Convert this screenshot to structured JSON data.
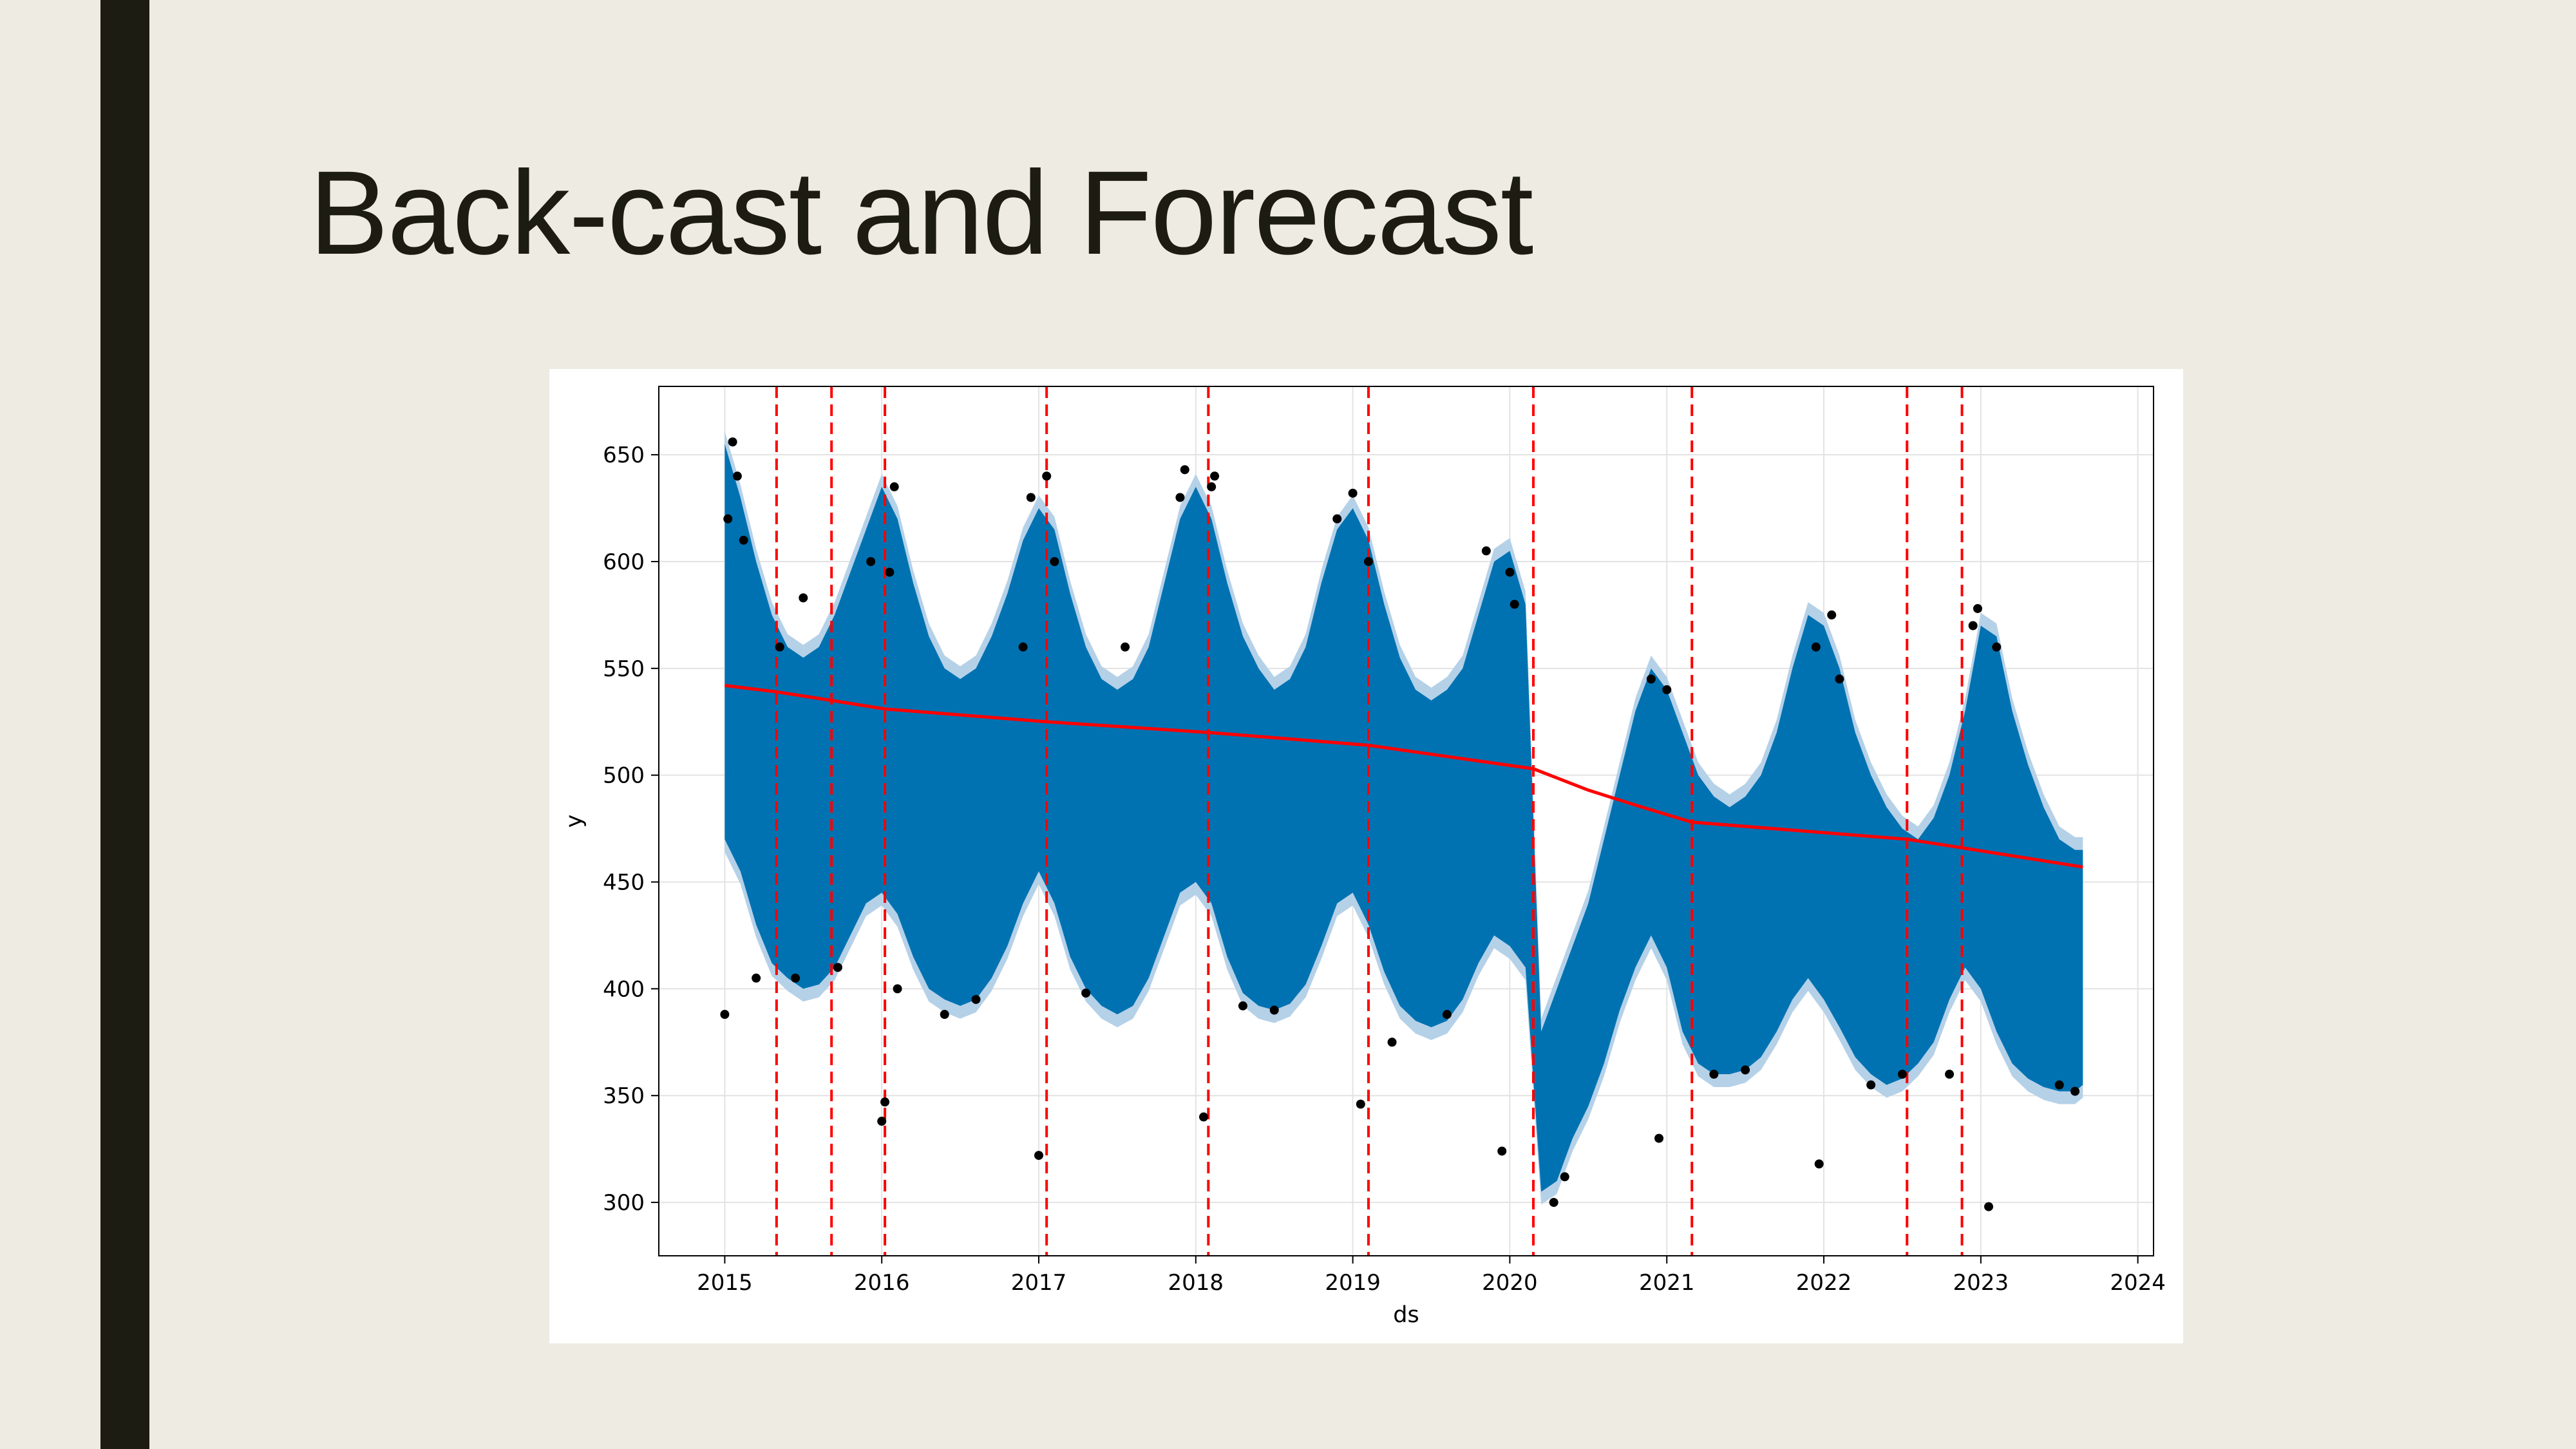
{
  "slide": {
    "title": "Back-cast and Forecast"
  },
  "chart_data": {
    "type": "line",
    "title": "",
    "xlabel": "ds",
    "ylabel": "y",
    "xlim": [
      2014.58,
      2024.1
    ],
    "ylim": [
      275,
      682
    ],
    "x_ticks": [
      2015,
      2016,
      2017,
      2018,
      2019,
      2020,
      2021,
      2022,
      2023,
      2024
    ],
    "x_tick_labels": [
      "2015",
      "2016",
      "2017",
      "2018",
      "2019",
      "2020",
      "2021",
      "2022",
      "2023",
      "2024"
    ],
    "y_ticks": [
      300,
      350,
      400,
      450,
      500,
      550,
      600,
      650
    ],
    "y_tick_labels": [
      "300",
      "350",
      "400",
      "450",
      "500",
      "550",
      "600",
      "650"
    ],
    "grid": true,
    "legend": "none",
    "colors": {
      "forecast": "#0072b2",
      "uncertainty": "#b5d1e8",
      "trend": "#ff0000",
      "changepoints": "#ff0000",
      "observed": "#000000",
      "frame": "#000000",
      "grid": "#e3e3e3"
    },
    "series": [
      {
        "role": "forecast_band",
        "x": [
          2015.0,
          2015.1,
          2015.2,
          2015.3,
          2015.4,
          2015.5,
          2015.6,
          2015.7,
          2015.8,
          2015.9,
          2016.0,
          2016.1,
          2016.2,
          2016.3,
          2016.4,
          2016.5,
          2016.6,
          2016.7,
          2016.8,
          2016.9,
          2017.0,
          2017.1,
          2017.2,
          2017.3,
          2017.4,
          2017.5,
          2017.6,
          2017.7,
          2017.8,
          2017.9,
          2018.0,
          2018.1,
          2018.2,
          2018.3,
          2018.4,
          2018.5,
          2018.6,
          2018.7,
          2018.8,
          2018.9,
          2019.0,
          2019.1,
          2019.2,
          2019.3,
          2019.4,
          2019.5,
          2019.6,
          2019.7,
          2019.8,
          2019.9,
          2020.0,
          2020.1,
          2020.2,
          2020.3,
          2020.4,
          2020.5,
          2020.6,
          2020.7,
          2020.8,
          2020.9,
          2021.0,
          2021.1,
          2021.2,
          2021.3,
          2021.4,
          2021.5,
          2021.6,
          2021.7,
          2021.8,
          2021.9,
          2022.0,
          2022.1,
          2022.2,
          2022.3,
          2022.4,
          2022.5,
          2022.6,
          2022.7,
          2022.8,
          2022.9,
          2023.0,
          2023.1,
          2023.2,
          2023.3,
          2023.4,
          2023.5,
          2023.6,
          2023.65
        ],
        "upper": [
          655,
          630,
          600,
          575,
          560,
          555,
          560,
          575,
          595,
          615,
          635,
          620,
          590,
          565,
          550,
          545,
          550,
          565,
          585,
          610,
          625,
          615,
          585,
          560,
          545,
          540,
          545,
          560,
          590,
          620,
          635,
          620,
          590,
          565,
          550,
          540,
          545,
          560,
          590,
          615,
          625,
          610,
          580,
          555,
          540,
          535,
          540,
          550,
          575,
          600,
          605,
          580,
          380,
          400,
          420,
          440,
          470,
          500,
          530,
          550,
          540,
          520,
          500,
          490,
          485,
          490,
          500,
          520,
          550,
          575,
          570,
          550,
          520,
          500,
          485,
          475,
          470,
          480,
          500,
          530,
          570,
          565,
          530,
          505,
          485,
          470,
          465,
          465
        ],
        "lower": [
          470,
          455,
          430,
          412,
          405,
          400,
          402,
          410,
          425,
          440,
          445,
          435,
          415,
          400,
          395,
          392,
          395,
          405,
          420,
          440,
          455,
          440,
          415,
          400,
          392,
          388,
          392,
          405,
          425,
          445,
          450,
          440,
          415,
          398,
          392,
          390,
          393,
          402,
          420,
          440,
          445,
          430,
          408,
          392,
          385,
          382,
          385,
          395,
          412,
          425,
          420,
          410,
          305,
          310,
          330,
          345,
          365,
          390,
          410,
          425,
          410,
          380,
          365,
          360,
          360,
          362,
          368,
          380,
          395,
          405,
          395,
          382,
          368,
          360,
          355,
          358,
          365,
          375,
          395,
          410,
          400,
          380,
          365,
          358,
          354,
          352,
          352,
          355
        ]
      },
      {
        "role": "trend",
        "x": [
          2015.0,
          2015.33,
          2015.68,
          2016.02,
          2017.05,
          2018.08,
          2019.1,
          2020.15,
          2020.5,
          2020.8,
          2021.16,
          2022.53,
          2022.88,
          2023.65
        ],
        "y": [
          542,
          539,
          535,
          531,
          525,
          520,
          514,
          503,
          493,
          486,
          478,
          470,
          466,
          457
        ]
      },
      {
        "role": "observed",
        "x": [
          2015.0,
          2015.02,
          2015.05,
          2015.08,
          2015.12,
          2015.2,
          2015.35,
          2015.45,
          2015.5,
          2015.72,
          2015.93,
          2016.0,
          2016.02,
          2016.05,
          2016.08,
          2016.1,
          2016.4,
          2016.6,
          2016.9,
          2016.95,
          2017.0,
          2017.05,
          2017.1,
          2017.3,
          2017.55,
          2017.9,
          2017.93,
          2018.05,
          2018.1,
          2018.12,
          2018.3,
          2018.5,
          2018.9,
          2019.0,
          2019.05,
          2019.1,
          2019.25,
          2019.6,
          2019.85,
          2019.95,
          2020.0,
          2020.03,
          2020.28,
          2020.35,
          2020.9,
          2020.95,
          2021.0,
          2021.3,
          2021.5,
          2021.95,
          2021.97,
          2022.05,
          2022.1,
          2022.3,
          2022.5,
          2022.8,
          2022.95,
          2022.98,
          2023.05,
          2023.1,
          2023.5,
          2023.6
        ],
        "y": [
          388,
          620,
          656,
          640,
          610,
          405,
          560,
          405,
          583,
          410,
          600,
          338,
          347,
          595,
          635,
          400,
          388,
          395,
          560,
          630,
          322,
          640,
          600,
          398,
          560,
          630,
          643,
          340,
          635,
          640,
          392,
          390,
          620,
          632,
          346,
          600,
          375,
          388,
          605,
          324,
          595,
          580,
          300,
          312,
          545,
          330,
          540,
          360,
          362,
          560,
          318,
          575,
          545,
          355,
          360,
          360,
          570,
          578,
          298,
          560,
          355,
          352
        ]
      }
    ],
    "changepoints": [
      2015.33,
      2015.68,
      2016.02,
      2017.05,
      2018.08,
      2019.1,
      2020.15,
      2021.16,
      2022.53,
      2022.88
    ]
  }
}
